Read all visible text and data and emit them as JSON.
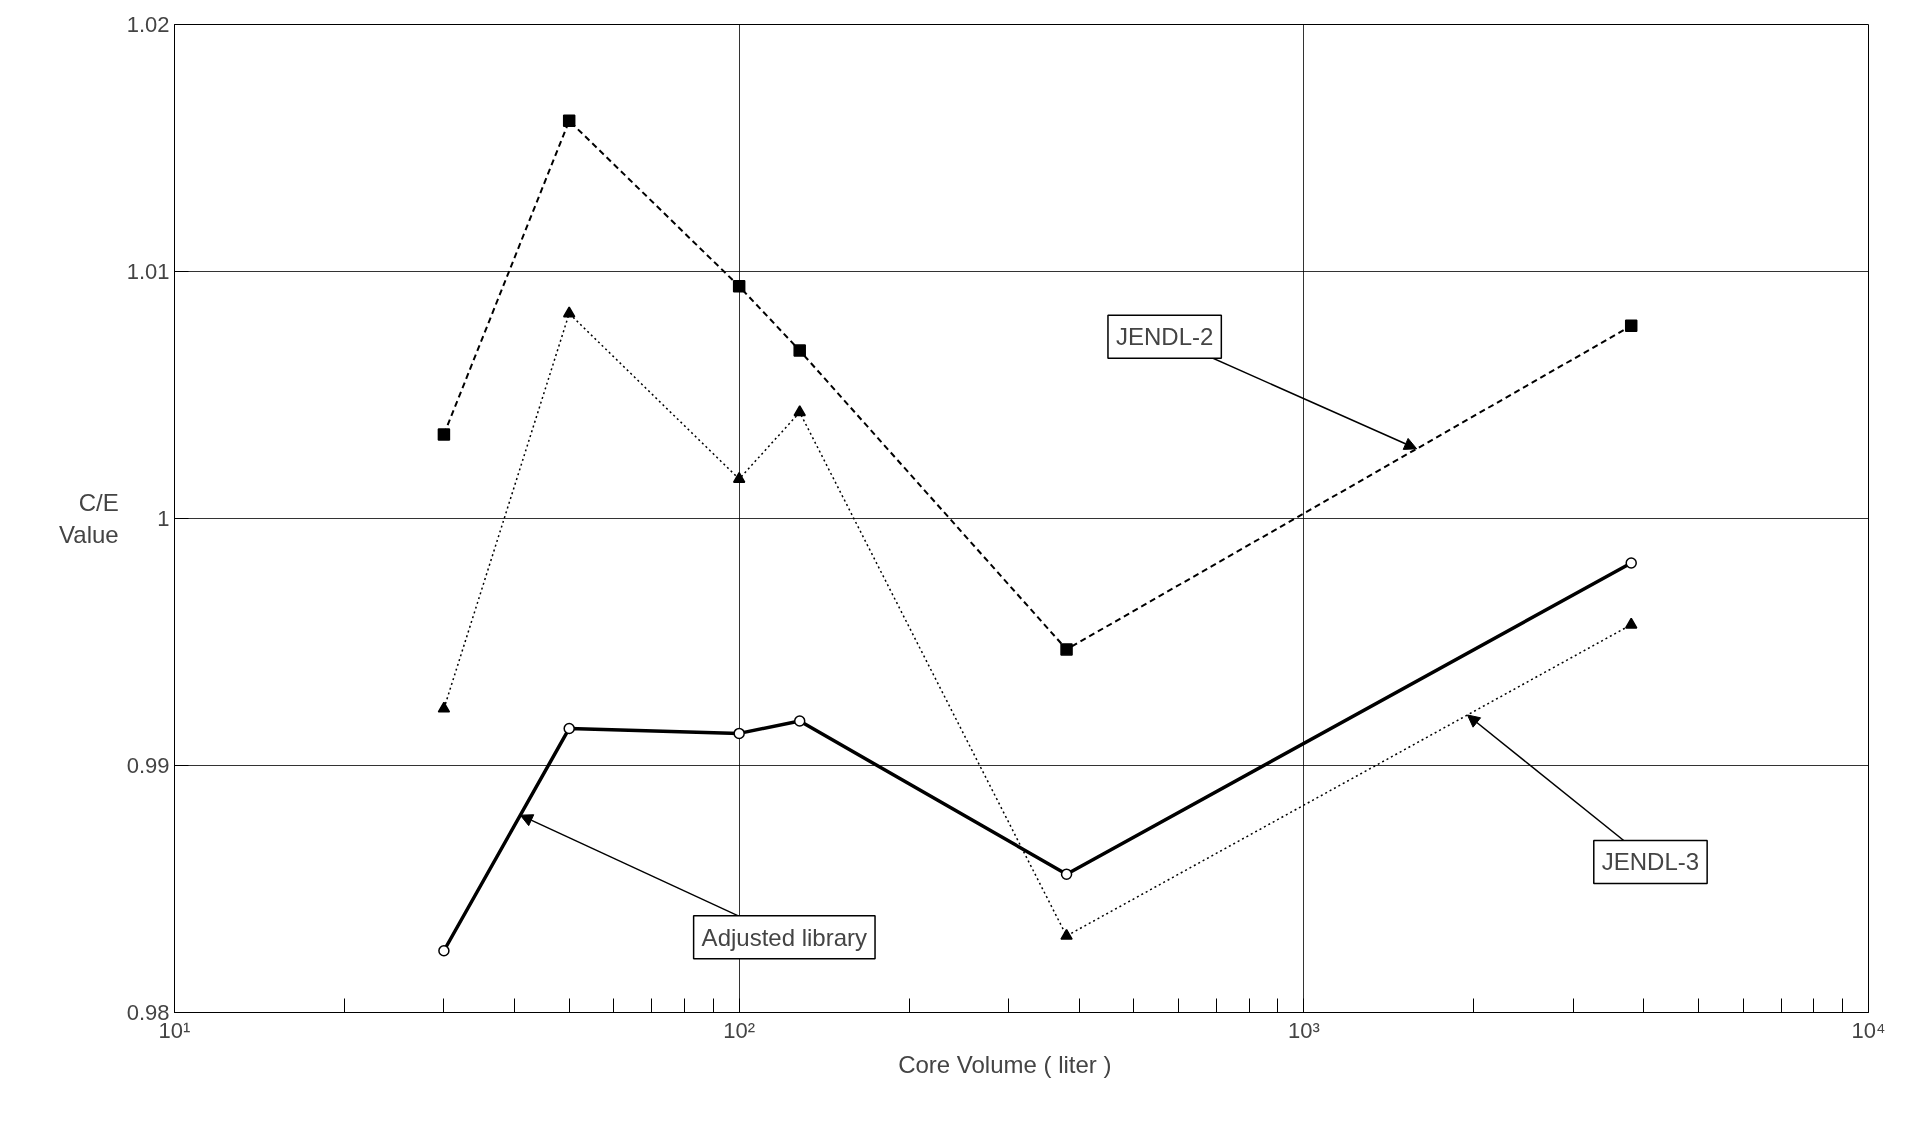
{
  "chart_data": {
    "type": "line",
    "xlabel": "Core   Volume    ( liter )",
    "ylabel": "C/E\nValue",
    "x": [
      30,
      50,
      100,
      128,
      380,
      3800
    ],
    "series": [
      {
        "name": "JENDL-2",
        "color": "#000000",
        "marker": "square",
        "line_style": "dashed",
        "values": [
          1.0034,
          1.0161,
          1.0094,
          1.0068,
          0.9947,
          1.0078
        ]
      },
      {
        "name": "JENDL-3",
        "color": "#000000",
        "marker": "triangle",
        "line_style": "dotted",
        "values": [
          0.9923,
          1.0083,
          1.0016,
          1.0043,
          0.9831,
          0.9957
        ]
      },
      {
        "name": "Adjusted library",
        "color": "#000000",
        "marker": "circle",
        "line_style": "solid",
        "values": [
          0.9825,
          0.9915,
          0.9913,
          0.9918,
          0.9856,
          0.9982
        ]
      }
    ],
    "log": "x",
    "grid": true,
    "xlim": [
      10,
      10000
    ],
    "xticks": [
      {
        "value": 10,
        "label": "10¹"
      },
      {
        "value": 100,
        "label": "10²"
      },
      {
        "value": 1000,
        "label": "10³"
      },
      {
        "value": 10000,
        "label": "10⁴"
      }
    ],
    "ylim": [
      0.98,
      1.02
    ],
    "yticks": [
      0.98,
      0.99,
      1,
      1.01,
      1.02
    ]
  }
}
